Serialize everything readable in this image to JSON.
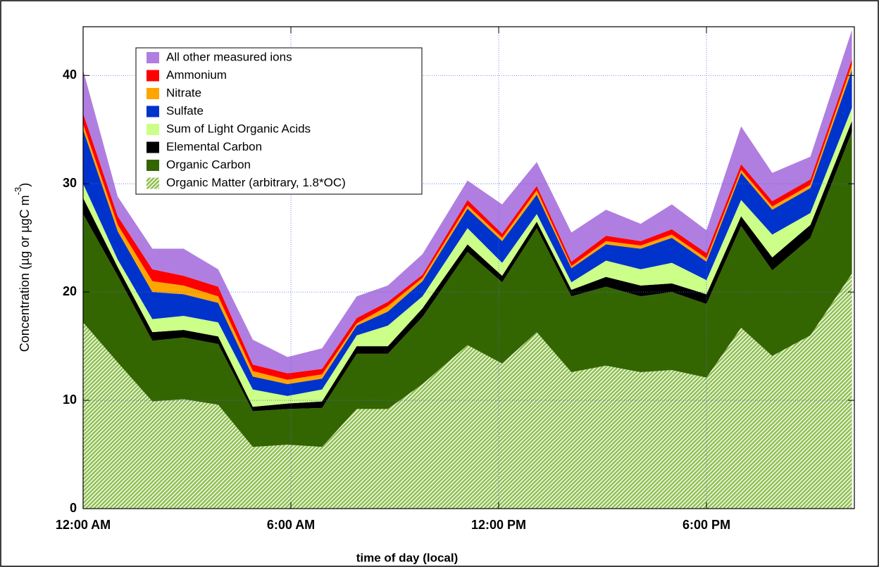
{
  "chart_data": {
    "type": "stacked_area",
    "xlabel": "time of day (local)",
    "ylabel": "Concentration (µg or µgC m",
    "ylabel_sup": "-3",
    "ylabel_end": ")",
    "x": [
      0,
      1.0,
      2.0,
      2.9,
      3.9,
      4.9,
      5.9,
      6.9,
      7.9,
      8.8,
      9.8,
      11.1,
      12.1,
      13.1,
      14.1,
      15.1,
      16.1,
      17.0,
      18.0,
      19.0,
      19.9,
      21.0,
      22.2
    ],
    "xlim": [
      0,
      22.27
    ],
    "xticks": [
      {
        "value": 0,
        "label": "12:00 AM"
      },
      {
        "value": 6,
        "label": "6:00 AM"
      },
      {
        "value": 12,
        "label": "12:00 PM"
      },
      {
        "value": 18,
        "label": "6:00 PM"
      }
    ],
    "ylim": [
      0,
      44.5
    ],
    "yticks": [
      0,
      10,
      20,
      30,
      40
    ],
    "grid": true,
    "series": [
      {
        "name": "Organic Matter (arbitrary, 1.8*OC)",
        "color": "#8fc050",
        "pattern": "hatch",
        "values": [
          17.2,
          13.5,
          9.9,
          10.1,
          9.6,
          5.7,
          5.9,
          5.7,
          9.2,
          9.2,
          11.5,
          15.1,
          13.4,
          16.3,
          12.6,
          13.2,
          12.6,
          12.8,
          12.1,
          16.7,
          14.1,
          16.0,
          21.7
        ]
      },
      {
        "name": "Organic Carbon",
        "color": "#336600",
        "values": [
          10.0,
          8.0,
          5.6,
          5.7,
          5.6,
          3.3,
          3.3,
          3.6,
          5.1,
          5.1,
          6.2,
          8.6,
          7.5,
          9.6,
          7.0,
          7.3,
          7.0,
          7.2,
          6.8,
          9.4,
          7.9,
          9.0,
          13.1
        ]
      },
      {
        "name": "Elemental Carbon",
        "color": "#000000",
        "values": [
          1.5,
          0.8,
          0.8,
          0.7,
          0.7,
          0.4,
          0.5,
          0.6,
          0.7,
          0.7,
          0.8,
          0.7,
          0.6,
          0.6,
          0.6,
          0.9,
          1.0,
          0.8,
          0.9,
          0.9,
          1.2,
          1.2,
          1.0
        ]
      },
      {
        "name": "Sum of Light Organic Acids",
        "color": "#ccff88",
        "values": [
          1.3,
          0.7,
          1.2,
          1.3,
          1.3,
          1.6,
          0.7,
          1.1,
          1.0,
          1.9,
          1.1,
          1.5,
          1.2,
          0.7,
          0.7,
          1.5,
          1.5,
          1.9,
          1.3,
          1.5,
          2.1,
          1.1,
          1.2
        ]
      },
      {
        "name": "Sulfate",
        "color": "#0033cc",
        "values": [
          5.0,
          2.6,
          2.5,
          2.0,
          1.8,
          1.2,
          1.1,
          1.0,
          0.9,
          1.3,
          1.4,
          1.8,
          2.0,
          1.8,
          1.3,
          1.5,
          1.9,
          2.3,
          1.7,
          2.5,
          2.3,
          2.3,
          3.5
        ]
      },
      {
        "name": "Nitrate",
        "color": "#ffa500",
        "values": [
          0.5,
          0.6,
          1.0,
          0.8,
          0.6,
          0.5,
          0.4,
          0.4,
          0.2,
          0.5,
          0.3,
          0.3,
          0.3,
          0.4,
          0.2,
          0.3,
          0.3,
          0.3,
          0.3,
          0.3,
          0.3,
          0.3,
          0.5
        ]
      },
      {
        "name": "Ammonium",
        "color": "#ff0000",
        "values": [
          1.0,
          0.8,
          1.1,
          0.9,
          0.9,
          0.6,
          0.6,
          0.5,
          0.5,
          0.4,
          0.3,
          0.5,
          0.4,
          0.4,
          0.4,
          0.5,
          0.4,
          0.5,
          0.5,
          0.5,
          0.5,
          0.5,
          0.5
        ]
      },
      {
        "name": "All other measured ions",
        "color": "#b07ee0",
        "values": [
          4.0,
          1.8,
          1.9,
          2.5,
          1.6,
          2.3,
          1.5,
          1.9,
          2.0,
          1.5,
          1.9,
          1.8,
          2.7,
          2.2,
          2.7,
          2.4,
          1.6,
          2.3,
          2.1,
          3.5,
          2.6,
          2.1,
          2.7
        ]
      }
    ]
  }
}
